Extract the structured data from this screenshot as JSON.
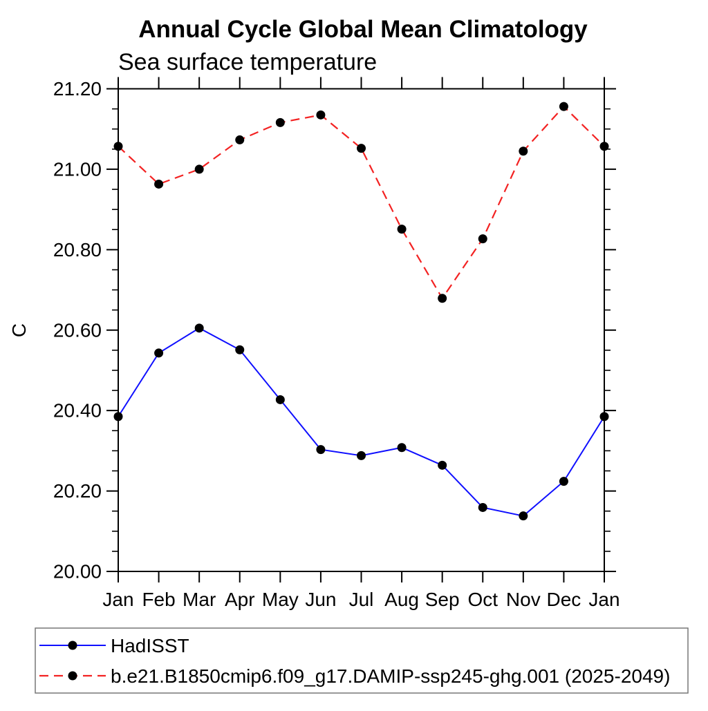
{
  "title": "Annual Cycle Global Mean Climatology",
  "subtitle": "Sea surface temperature",
  "y_axis_label": "C",
  "colors": {
    "hadisst_line": "#0f0fff",
    "model_line": "#f32222",
    "marker": "#000000",
    "axis": "#000000",
    "legend_border": "#777777",
    "background": "#ffffff"
  },
  "chart_data": {
    "type": "line",
    "title": "Annual Cycle Global Mean Climatology",
    "subtitle": "Sea surface temperature",
    "ylabel": "C",
    "x_categories": [
      "Jan",
      "Feb",
      "Mar",
      "Apr",
      "May",
      "Jun",
      "Jul",
      "Aug",
      "Sep",
      "Oct",
      "Nov",
      "Dec",
      "Jan"
    ],
    "series": [
      {
        "name": "HadISST",
        "color": "#0f0fff",
        "line_style": "solid",
        "marker": "filled-circle",
        "values": [
          20.385,
          20.543,
          20.605,
          20.551,
          20.427,
          20.303,
          20.288,
          20.308,
          20.264,
          20.159,
          20.138,
          20.224,
          20.385
        ]
      },
      {
        "name": "b.e21.B1850cmip6.f09_g17.DAMIP-ssp245-ghg.001 (2025-2049)",
        "color": "#f32222",
        "line_style": "dashed",
        "marker": "filled-circle",
        "values": [
          21.057,
          20.963,
          21.0,
          21.073,
          21.116,
          21.135,
          21.052,
          20.851,
          20.679,
          20.827,
          21.045,
          21.156,
          21.057
        ]
      }
    ],
    "ylim": [
      20.0,
      21.2
    ],
    "ytick_labels": [
      "20.00",
      "20.20",
      "20.40",
      "20.60",
      "20.80",
      "21.00",
      "21.20"
    ],
    "ytick_minor_step": 0.05,
    "grid": false,
    "legend_position": "bottom"
  }
}
